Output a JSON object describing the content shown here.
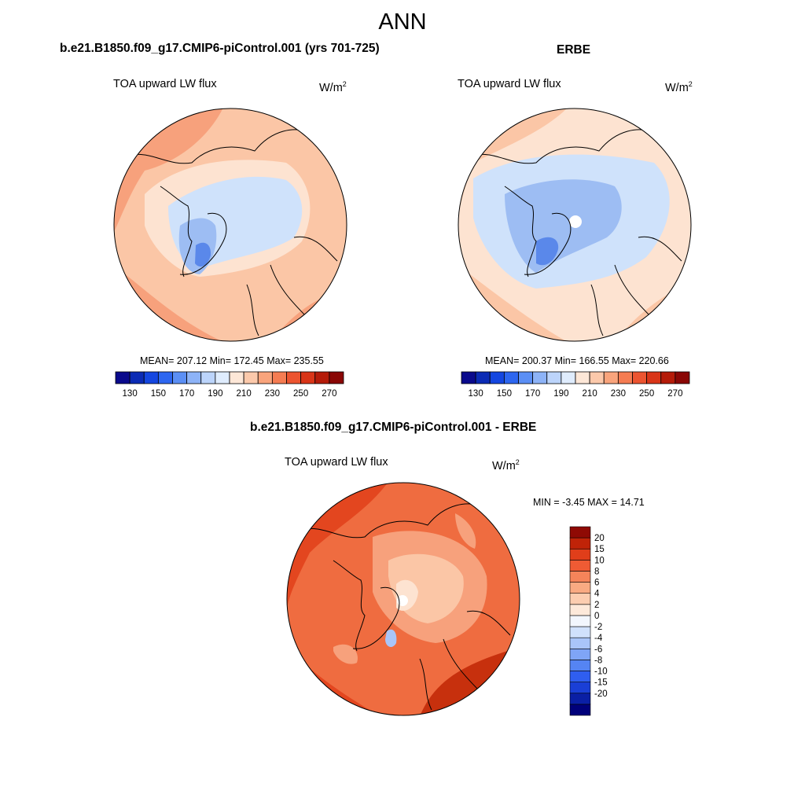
{
  "figure": {
    "title": "ANN",
    "top_left": {
      "case_title": "b.e21.B1850.f09_g17.CMIP6-piControl.001 (yrs 701-725)",
      "variable": "TOA upward LW flux",
      "units_base": "W/m",
      "units_exp": "2",
      "stats": "MEAN= 207.12  Min= 172.45  Max= 235.55"
    },
    "top_right": {
      "case_title": "ERBE",
      "variable": "TOA upward LW flux",
      "units_base": "W/m",
      "units_exp": "2",
      "stats": "MEAN= 200.37  Min= 166.55  Max= 220.66"
    },
    "bottom": {
      "case_title": "b.e21.B1850.f09_g17.CMIP6-piControl.001 - ERBE",
      "variable": "TOA upward LW flux",
      "units_base": "W/m",
      "units_exp": "2",
      "stats": "MIN =  -3.45 MAX =  14.71"
    }
  },
  "colorbar_top": {
    "colors": [
      "#0a0a8c",
      "#0b2bb5",
      "#1446e0",
      "#2d66f0",
      "#5b8ff5",
      "#8db3f7",
      "#bcd4fb",
      "#dfecfd",
      "#fde7d7",
      "#fcc9ab",
      "#f9a47c",
      "#f57c52",
      "#ec5430",
      "#d93518",
      "#b51b09",
      "#8a0705"
    ],
    "labels": [
      "130",
      "150",
      "170",
      "190",
      "210",
      "230",
      "250",
      "270"
    ]
  },
  "colorbar_diff": {
    "colors": [
      "#00007a",
      "#0a1fa5",
      "#1a3fd6",
      "#2f5ef0",
      "#5584f3",
      "#7fa5f6",
      "#a9c5f9",
      "#d0e1fc",
      "#f2f6fd",
      "#fde9da",
      "#fccdb0",
      "#f9aa82",
      "#f5845a",
      "#ef5b34",
      "#e03e1a",
      "#c02308",
      "#8f0a04"
    ],
    "labels": [
      "20",
      "15",
      "10",
      "8",
      "6",
      "4",
      "2",
      "0",
      "-2",
      "-4",
      "-6",
      "-8",
      "-10",
      "-15",
      "-20"
    ]
  },
  "map_colors": {
    "light_blue": "#cfe2fb",
    "mid_blue": "#9dbdf3",
    "dark_blue": "#5a88ea",
    "pale_peach": "#fde3d1",
    "peach": "#fbc6a6",
    "salmon": "#f7a17c",
    "orange_red": "#ef6c40",
    "red": "#e3461f",
    "dark_red": "#c7300d"
  }
}
